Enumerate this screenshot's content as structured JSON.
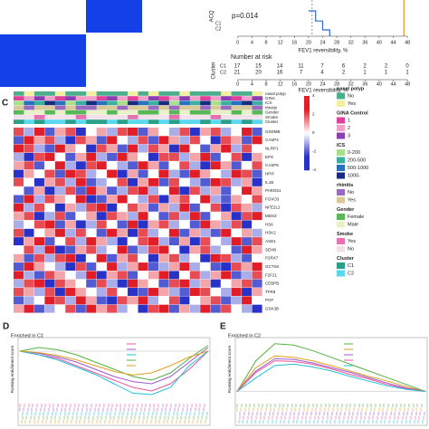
{
  "chart_data": [
    {
      "type": "line",
      "annotation": "p=0.014",
      "ylabel": "ACQ",
      "xlabel": "FEV1 reversibility, %",
      "xlim": [
        -2,
        50
      ],
      "xticks": [
        0,
        4,
        8,
        12,
        16,
        20,
        24,
        28,
        32,
        36,
        40,
        44,
        48
      ],
      "ylim": [
        0,
        1
      ],
      "series": [
        {
          "name": "C1",
          "color": "#2a6bd6",
          "x": [
            20,
            22,
            22,
            24,
            24,
            26,
            26
          ],
          "values": [
            0.2,
            0.2,
            0.12,
            0.12,
            0.05,
            0.05,
            0
          ]
        },
        {
          "name": "C2",
          "color": "#e09a2a",
          "x": [
            44,
            47,
            47
          ],
          "values": [
            1,
            1,
            0
          ]
        }
      ],
      "risk_table": {
        "title": "Number at risk",
        "ylabel": "Cluster",
        "rows": [
          [
            17,
            15,
            14,
            11,
            7,
            6,
            2,
            2,
            0
          ],
          [
            21,
            20,
            16,
            7,
            4,
            2,
            1,
            1,
            1
          ]
        ]
      }
    },
    {
      "type": "heatmap",
      "panel": "C",
      "zlim": [
        -4,
        4
      ],
      "colorbar_ticks": [
        4,
        2,
        0,
        -2,
        -4
      ],
      "rows": [
        "GSDMB",
        "CASP4",
        "NLRP1",
        "EPX",
        "CASP8",
        "HPIF",
        "IL1B",
        "PARG51",
        "FOXO3",
        "NFE2L2",
        "MDS3",
        "HSK",
        "HSK2",
        "ASD1",
        "SEHB",
        "P2RX7",
        "GCTSK",
        "F2F21",
        "CEBPB",
        "TFR8",
        "PGF",
        "GSK3B"
      ],
      "values": [
        [
          2,
          -1,
          3,
          -2,
          1,
          2,
          -3,
          0,
          1,
          -1,
          2,
          3,
          -2,
          1,
          0,
          -1,
          2,
          -3,
          1,
          2,
          -1,
          0,
          3,
          -2
        ],
        [
          -2,
          3,
          1,
          2,
          -1,
          -3,
          2,
          1,
          -2,
          3,
          0,
          -1,
          2,
          -2,
          3,
          1,
          -1,
          2,
          0,
          -3,
          2,
          1,
          -2,
          3
        ],
        [
          3,
          2,
          -1,
          -2,
          3,
          1,
          0,
          -3,
          2,
          1,
          -2,
          3,
          -1,
          2,
          1,
          -3,
          3,
          0,
          -2,
          1,
          3,
          -1,
          2,
          0
        ],
        [
          -1,
          -3,
          2,
          3,
          0,
          -2,
          1,
          3,
          -1,
          -2,
          3,
          1,
          0,
          -3,
          2,
          2,
          -1,
          1,
          3,
          -2,
          0,
          2,
          -3,
          1
        ],
        [
          1,
          2,
          -2,
          0,
          3,
          -1,
          -3,
          2,
          3,
          0,
          -1,
          -2,
          3,
          1,
          -2,
          0,
          2,
          -1,
          -3,
          3,
          1,
          -2,
          0,
          2
        ],
        [
          -3,
          1,
          0,
          2,
          -2,
          3,
          2,
          -1,
          0,
          3,
          -3,
          1,
          -2,
          0,
          3,
          -1,
          -2,
          3,
          1,
          0,
          -1,
          3,
          2,
          -2
        ],
        [
          2,
          0,
          -3,
          1,
          2,
          -1,
          3,
          -2,
          -1,
          0,
          2,
          -3,
          1,
          3,
          -2,
          2,
          0,
          -1,
          -2,
          3,
          2,
          -1,
          1,
          -3
        ],
        [
          0,
          -2,
          1,
          -3,
          -1,
          2,
          -2,
          3,
          1,
          -2,
          -1,
          2,
          3,
          -1,
          0,
          3,
          -3,
          2,
          -1,
          1,
          -2,
          0,
          3,
          1
        ],
        [
          -2,
          3,
          -1,
          2,
          1,
          0,
          3,
          -3,
          -2,
          1,
          3,
          0,
          -1,
          2,
          -3,
          1,
          2,
          0,
          3,
          -1,
          -2,
          1,
          0,
          2
        ],
        [
          3,
          -1,
          2,
          0,
          -3,
          1,
          -1,
          2,
          3,
          -3,
          0,
          2,
          1,
          -2,
          1,
          -1,
          3,
          -2,
          0,
          2,
          -3,
          2,
          1,
          -1
        ],
        [
          1,
          2,
          -3,
          -1,
          2,
          -2,
          0,
          1,
          -3,
          2,
          1,
          -1,
          3,
          0,
          -2,
          2,
          -1,
          3,
          -2,
          0,
          1,
          -3,
          2,
          3
        ],
        [
          -1,
          0,
          2,
          3,
          -2,
          1,
          -3,
          -1,
          2,
          0,
          -2,
          3,
          -3,
          1,
          2,
          -1,
          0,
          -2,
          3,
          1,
          -1,
          2,
          -3,
          0
        ],
        [
          2,
          -3,
          0,
          1,
          3,
          -1,
          2,
          0,
          -2,
          3,
          1,
          -3,
          2,
          -1,
          0,
          3,
          -2,
          1,
          -1,
          -2,
          3,
          0,
          1,
          -1
        ],
        [
          -3,
          1,
          3,
          -2,
          0,
          2,
          -1,
          3,
          1,
          -1,
          -3,
          0,
          2,
          3,
          -1,
          -2,
          1,
          -3,
          2,
          0,
          -1,
          3,
          -2,
          2
        ],
        [
          0,
          2,
          -1,
          3,
          -3,
          -2,
          1,
          2,
          -1,
          0,
          3,
          -2,
          -1,
          2,
          3,
          0,
          -3,
          1,
          2,
          -1,
          0,
          -2,
          3,
          1
        ],
        [
          1,
          -2,
          2,
          -1,
          2,
          3,
          -3,
          0,
          3,
          -2,
          1,
          2,
          0,
          -3,
          1,
          2,
          -1,
          0,
          -3,
          3,
          2,
          -1,
          -2,
          0
        ],
        [
          -2,
          3,
          1,
          0,
          -1,
          -3,
          2,
          -2,
          0,
          3,
          -1,
          1,
          3,
          -2,
          -1,
          1,
          3,
          -1,
          0,
          -2,
          -3,
          2,
          1,
          3
        ],
        [
          3,
          -1,
          -2,
          2,
          1,
          0,
          -1,
          3,
          -3,
          1,
          2,
          -2,
          0,
          1,
          3,
          -3,
          0,
          2,
          -1,
          1,
          3,
          -2,
          -1,
          2
        ],
        [
          -1,
          2,
          3,
          -3,
          2,
          1,
          0,
          -2,
          2,
          -1,
          -3,
          3,
          1,
          0,
          -2,
          2,
          3,
          -1,
          1,
          -3,
          0,
          1,
          2,
          -2
        ],
        [
          2,
          1,
          -1,
          2,
          -3,
          3,
          1,
          0,
          -1,
          2,
          0,
          -3,
          -2,
          3,
          1,
          -1,
          -2,
          3,
          2,
          0,
          -1,
          3,
          -3,
          1
        ],
        [
          -2,
          -1,
          0,
          3,
          2,
          -1,
          3,
          1,
          -2,
          -3,
          2,
          1,
          3,
          -1,
          0,
          2,
          -3,
          0,
          1,
          2,
          -2,
          -1,
          3,
          0
        ],
        [
          1,
          3,
          -2,
          -1,
          0,
          2,
          -2,
          3,
          1,
          2,
          -1,
          0,
          -3,
          2,
          3,
          -2,
          1,
          -1,
          3,
          -2,
          2,
          0,
          -1,
          -3
        ]
      ],
      "annotations": [
        {
          "label": "nasal polyp",
          "title": "nasal polyp",
          "levels": [
            "No",
            "Yes"
          ],
          "colors": [
            "#4cae8c",
            "#f2f0a0"
          ],
          "values": [
            0,
            1,
            0,
            0,
            1,
            0,
            0,
            1,
            0,
            0,
            0,
            1,
            0,
            1,
            0,
            0,
            1,
            0,
            0,
            0,
            1,
            0,
            0,
            1
          ]
        },
        {
          "label": "GINA",
          "title": "GINA Control",
          "levels": [
            "1",
            "2",
            "3"
          ],
          "colors": [
            "#e0409a",
            "#f0a0c8",
            "#8a3fb0"
          ],
          "values": [
            0,
            1,
            2,
            1,
            0,
            2,
            1,
            1,
            0,
            2,
            1,
            0,
            1,
            2,
            0,
            1,
            2,
            1,
            0,
            1,
            2,
            0,
            1,
            2
          ]
        },
        {
          "label": "ICS",
          "title": "ICS",
          "levels": [
            "0-200",
            "200-500",
            "500-1000",
            "1000-"
          ],
          "colors": [
            "#a8e08a",
            "#3cb0a0",
            "#2a70c0",
            "#1a2a80"
          ],
          "values": [
            0,
            2,
            1,
            3,
            2,
            0,
            1,
            3,
            2,
            1,
            0,
            3,
            2,
            1,
            3,
            0,
            2,
            1,
            3,
            0,
            1,
            2,
            3,
            1
          ]
        },
        {
          "label": "rhinitis",
          "title": "rhinitis",
          "levels": [
            "No",
            "Yes"
          ],
          "colors": [
            "#9a6ac0",
            "#d8c89a"
          ],
          "values": [
            1,
            0,
            1,
            1,
            0,
            1,
            0,
            0,
            1,
            1,
            0,
            1,
            1,
            0,
            1,
            0,
            1,
            1,
            0,
            1,
            0,
            1,
            1,
            0
          ]
        },
        {
          "label": "Gender",
          "title": "Gender",
          "levels": [
            "Female",
            "Male"
          ],
          "colors": [
            "#58b858",
            "#e8f0c8"
          ],
          "values": [
            0,
            1,
            1,
            0,
            1,
            0,
            0,
            1,
            1,
            0,
            1,
            1,
            0,
            0,
            1,
            0,
            1,
            0,
            0,
            1,
            1,
            0,
            1,
            0
          ]
        },
        {
          "label": "Smoke",
          "title": "Smoke",
          "levels": [
            "Yes",
            "No"
          ],
          "colors": [
            "#e870b0",
            "#f4e0ea"
          ],
          "values": [
            1,
            1,
            0,
            1,
            1,
            1,
            0,
            1,
            1,
            1,
            1,
            0,
            1,
            1,
            1,
            0,
            1,
            1,
            1,
            0,
            1,
            1,
            1,
            1
          ]
        },
        {
          "label": "Cluster",
          "title": "Cluster",
          "levels": [
            "C1",
            "C2"
          ],
          "colors": [
            "#2aa08a",
            "#5ad8f0"
          ],
          "values": [
            0,
            1,
            0,
            1,
            1,
            0,
            1,
            0,
            0,
            1,
            0,
            1,
            1,
            0,
            1,
            0,
            1,
            1,
            0,
            1,
            0,
            1,
            0,
            1
          ]
        }
      ]
    },
    {
      "type": "line",
      "panel": "D",
      "title": "Enriched in C1",
      "ylabel": "Running enrichment score",
      "xlim": [
        0,
        10
      ],
      "ylim": [
        -0.65,
        0.15
      ],
      "x": [
        0,
        1,
        2,
        3,
        4,
        5,
        6,
        7,
        8,
        9,
        10
      ],
      "series": [
        {
          "color": "#e8559a",
          "values": [
            0,
            -0.05,
            -0.1,
            -0.2,
            -0.3,
            -0.4,
            -0.5,
            -0.55,
            -0.45,
            -0.25,
            0
          ]
        },
        {
          "color": "#9b59d0",
          "values": [
            0,
            -0.03,
            -0.08,
            -0.15,
            -0.25,
            -0.35,
            -0.42,
            -0.45,
            -0.35,
            -0.15,
            0.05
          ]
        },
        {
          "color": "#22c0d8",
          "values": [
            0,
            -0.05,
            -0.12,
            -0.22,
            -0.32,
            -0.45,
            -0.58,
            -0.6,
            -0.5,
            -0.2,
            0
          ]
        },
        {
          "color": "#55b040",
          "values": [
            0,
            0.05,
            0.02,
            -0.05,
            -0.15,
            -0.25,
            -0.35,
            -0.4,
            -0.3,
            -0.1,
            0.08
          ]
        },
        {
          "color": "#e0a020",
          "values": [
            0,
            -0.02,
            -0.06,
            -0.12,
            -0.2,
            -0.28,
            -0.33,
            -0.3,
            -0.2,
            -0.08,
            0
          ]
        }
      ]
    },
    {
      "type": "line",
      "panel": "E",
      "title": "Enriched in C2",
      "ylabel": "Running enrichment score",
      "xlim": [
        0,
        10
      ],
      "ylim": [
        -0.1,
        0.75
      ],
      "x": [
        0,
        1,
        2,
        3,
        4,
        5,
        6,
        7,
        8,
        9,
        10
      ],
      "series": [
        {
          "color": "#55b040",
          "values": [
            0,
            0.45,
            0.7,
            0.68,
            0.6,
            0.5,
            0.4,
            0.3,
            0.2,
            0.1,
            0
          ]
        },
        {
          "color": "#e0a020",
          "values": [
            0,
            0.35,
            0.52,
            0.5,
            0.45,
            0.38,
            0.3,
            0.22,
            0.15,
            0.07,
            0
          ]
        },
        {
          "color": "#9b59d0",
          "values": [
            0,
            0.3,
            0.48,
            0.47,
            0.42,
            0.35,
            0.28,
            0.2,
            0.12,
            0.05,
            0
          ]
        },
        {
          "color": "#e8559a",
          "values": [
            0,
            0.28,
            0.45,
            0.44,
            0.4,
            0.33,
            0.25,
            0.18,
            0.1,
            0.04,
            0
          ]
        },
        {
          "color": "#22c0d8",
          "values": [
            0,
            0.2,
            0.38,
            0.4,
            0.36,
            0.3,
            0.22,
            0.15,
            0.08,
            0.03,
            0
          ]
        }
      ]
    }
  ]
}
